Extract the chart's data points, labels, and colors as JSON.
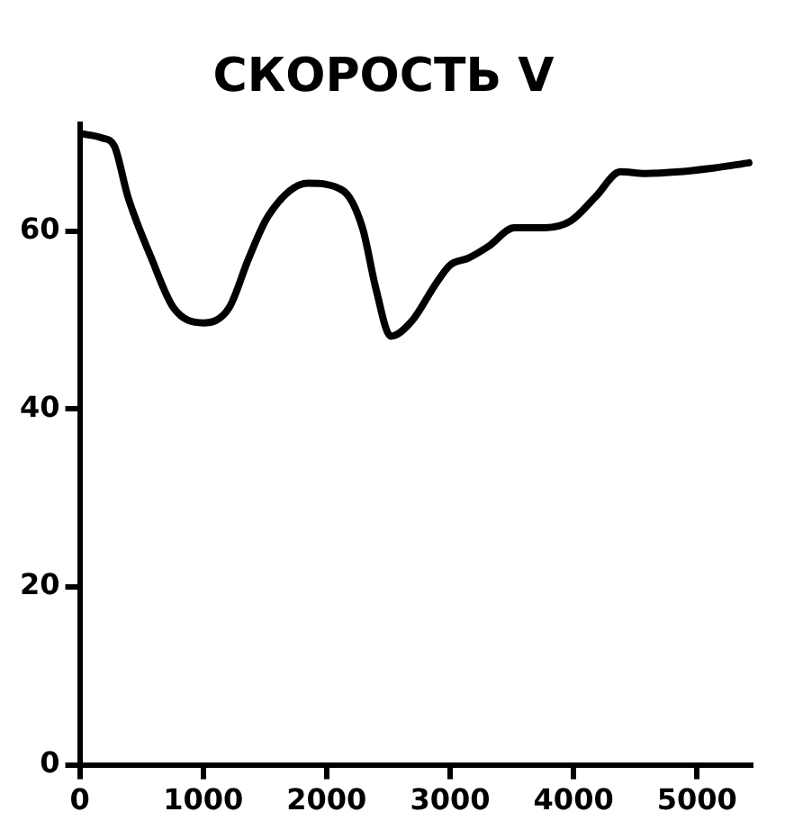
{
  "chart_data": {
    "type": "line",
    "title": "СКОРОСТЬ V",
    "x": [
      0,
      180,
      280,
      390,
      580,
      760,
      1000,
      1210,
      1370,
      1530,
      1850,
      2130,
      2290,
      2400,
      2520,
      2690,
      2880,
      3000,
      3150,
      3310,
      3520,
      3770,
      3980,
      4180,
      4380,
      4580,
      4860,
      5130,
      5420
    ],
    "series": [
      {
        "color": "#000000",
        "values": [
          71,
          70.5,
          69.6,
          63.9,
          57,
          51.4,
          49.7,
          51.4,
          57,
          61.8,
          65.4,
          64.6,
          60.4,
          53.5,
          48.2,
          49.9,
          54,
          56.2,
          57,
          58.3,
          60.4,
          60.4,
          61.2,
          63.9,
          66.7,
          66.5,
          66.7,
          67.1,
          67.7
        ]
      }
    ],
    "xlim": [
      0,
      5450
    ],
    "xticks": [
      0,
      1000,
      2000,
      3000,
      4000,
      5000
    ],
    "ylim": [
      0,
      72
    ],
    "yticks": [
      0,
      20,
      40,
      60
    ],
    "grid": false,
    "legend": false,
    "marker": "none",
    "line_style": "solid"
  }
}
